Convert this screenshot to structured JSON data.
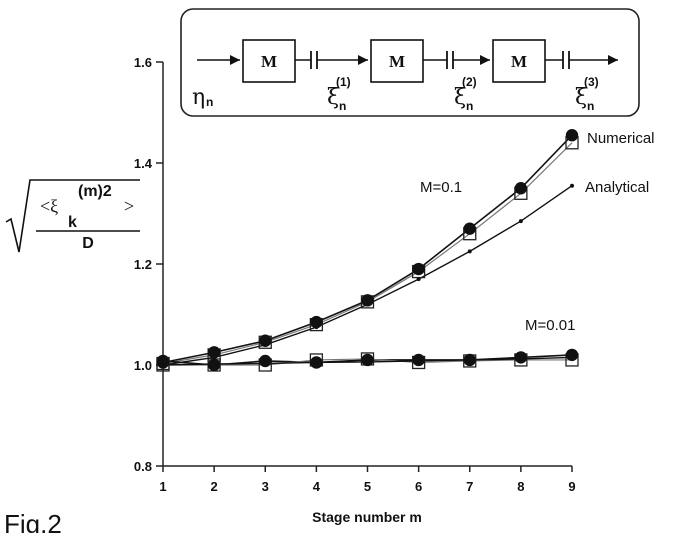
{
  "figure_label": "Fig.2",
  "chart_data": {
    "type": "line",
    "xlabel": "Stage number m",
    "ylabel": {
      "open": "<ξ",
      "sub": "k",
      "sup": "(m)2",
      "close": ">",
      "denominator": "D"
    },
    "xlim": [
      1,
      9
    ],
    "ylim": [
      0.8,
      1.6
    ],
    "x_ticks": [
      1,
      2,
      3,
      4,
      5,
      6,
      7,
      8,
      9
    ],
    "y_ticks": [
      {
        "value": 0.8,
        "label": "0.8"
      },
      {
        "value": 1.0,
        "label": "1.0"
      },
      {
        "value": 1.2,
        "label": "1.2"
      },
      {
        "value": 1.4,
        "label": "1.4"
      },
      {
        "value": 1.6,
        "label": "1.6"
      }
    ],
    "grid": false,
    "x": [
      1,
      2,
      3,
      4,
      5,
      6,
      7,
      8,
      9
    ],
    "series": [
      {
        "group": "M=0.1",
        "marker": "filled-circle",
        "values": [
          1.005,
          1.025,
          1.048,
          1.085,
          1.128,
          1.19,
          1.27,
          1.35,
          1.455
        ]
      },
      {
        "group": "M=0.1",
        "marker": "open-square",
        "values": [
          1.003,
          1.02,
          1.045,
          1.08,
          1.125,
          1.185,
          1.26,
          1.34,
          1.44
        ]
      },
      {
        "group": "M=0.1",
        "marker": "small-dot",
        "values": [
          1.0,
          1.015,
          1.04,
          1.075,
          1.12,
          1.17,
          1.225,
          1.285,
          1.355
        ]
      },
      {
        "group": "M=0.01",
        "marker": "filled-circle",
        "values": [
          1.008,
          1.0,
          1.008,
          1.005,
          1.01,
          1.01,
          1.01,
          1.015,
          1.02
        ]
      },
      {
        "group": "M=0.01",
        "marker": "open-square",
        "values": [
          1.0,
          1.0,
          1.0,
          1.01,
          1.012,
          1.005,
          1.008,
          1.01,
          1.01
        ]
      },
      {
        "group": "M=0.01",
        "marker": "small-dot",
        "values": [
          1.0,
          1.002,
          1.003,
          1.005,
          1.006,
          1.008,
          1.01,
          1.012,
          1.015
        ]
      }
    ],
    "annotations": {
      "numerical": "Numerical",
      "analytical": "Analytical",
      "m_high": "M=0.1",
      "m_low": "M=0.01"
    }
  },
  "diagram": {
    "box_label": "M",
    "input": {
      "symbol": "η",
      "sub": "n"
    },
    "outputs": [
      {
        "symbol": "ξ",
        "sub": "n",
        "sup": "(1)"
      },
      {
        "symbol": "ξ",
        "sub": "n",
        "sup": "(2)"
      },
      {
        "symbol": "ξ",
        "sub": "n",
        "sup": "(3)"
      }
    ]
  }
}
